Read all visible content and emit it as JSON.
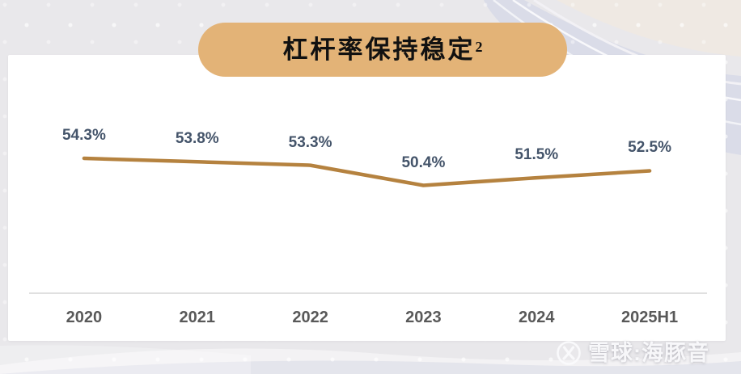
{
  "title": {
    "text": "杠杆率保持稳定",
    "superscript": "2"
  },
  "watermark": {
    "brand": "雪球:海豚音",
    "logo": "xueqiu-circle-x-icon"
  },
  "colors": {
    "background": "#E9E8EB",
    "card": "#FFFFFF",
    "banner": "#E3B377",
    "line": "#B5823F",
    "data_label": "#44546A",
    "axis_label": "#595959",
    "axis_line": "#D6D6D6",
    "wave_lavender": "#DADCE8",
    "wave_cream": "#EFE9E3"
  },
  "chart_data": {
    "type": "line",
    "title": "杠杆率保持稳定²",
    "categories": [
      "2020",
      "2021",
      "2022",
      "2023",
      "2024",
      "2025H1"
    ],
    "values": [
      54.3,
      53.8,
      53.3,
      50.4,
      51.5,
      52.5
    ],
    "labels": [
      "54.3%",
      "53.8%",
      "53.3%",
      "50.4%",
      "51.5%",
      "52.5%"
    ],
    "xlabel": "",
    "ylabel": "",
    "ylim": [
      49,
      56
    ],
    "grid": false,
    "legend": "none",
    "line_color": "#B5823F",
    "label_color": "#44546A"
  }
}
